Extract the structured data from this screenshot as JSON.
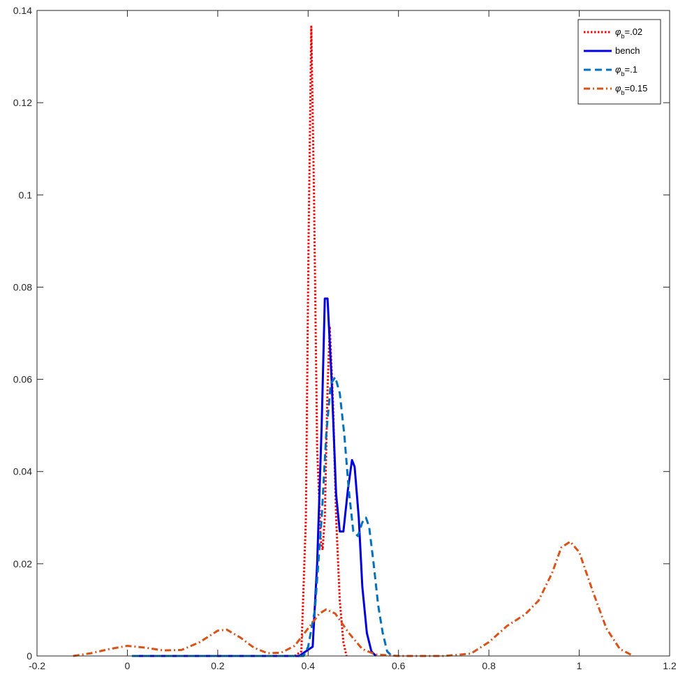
{
  "chart_data": {
    "type": "line",
    "title": "",
    "xlabel": "",
    "ylabel": "",
    "xlim": [
      -0.2,
      1.2
    ],
    "ylim": [
      0,
      0.14
    ],
    "x_ticks": [
      -0.2,
      0,
      0.2,
      0.4,
      0.6,
      0.8,
      1,
      1.2
    ],
    "x_tick_labels": [
      "-0.2",
      "0",
      "0.2",
      "0.4",
      "0.6",
      "0.8",
      "1",
      "1.2"
    ],
    "y_ticks": [
      0,
      0.02,
      0.04,
      0.06,
      0.08,
      0.1,
      0.12,
      0.14
    ],
    "y_tick_labels": [
      "0",
      "0.02",
      "0.04",
      "0.06",
      "0.08",
      "0.1",
      "0.12",
      "0.14"
    ],
    "grid": false,
    "legend_position": "top-right",
    "series": [
      {
        "legend_symbol": "φ",
        "legend_subscript": "b",
        "legend_suffix": "=.02",
        "color": "#ff0000",
        "style": "dotted",
        "points": [
          [
            0.37,
            0
          ],
          [
            0.385,
            0.001
          ],
          [
            0.395,
            0.03
          ],
          [
            0.401,
            0.09
          ],
          [
            0.407,
            0.1365
          ],
          [
            0.413,
            0.1
          ],
          [
            0.42,
            0.045
          ],
          [
            0.428,
            0.025
          ],
          [
            0.432,
            0.023
          ],
          [
            0.437,
            0.03
          ],
          [
            0.443,
            0.058
          ],
          [
            0.448,
            0.0715
          ],
          [
            0.455,
            0.055
          ],
          [
            0.462,
            0.03
          ],
          [
            0.47,
            0.012
          ],
          [
            0.478,
            0.003
          ],
          [
            0.485,
            0
          ]
        ]
      },
      {
        "legend_label": "bench",
        "color": "#0000dd",
        "style": "solid",
        "points": [
          [
            0.01,
            0
          ],
          [
            0.38,
            0
          ],
          [
            0.41,
            0.002
          ],
          [
            0.42,
            0.02
          ],
          [
            0.43,
            0.05
          ],
          [
            0.437,
            0.0775
          ],
          [
            0.443,
            0.0775
          ],
          [
            0.452,
            0.06
          ],
          [
            0.462,
            0.035
          ],
          [
            0.47,
            0.027
          ],
          [
            0.478,
            0.027
          ],
          [
            0.488,
            0.036
          ],
          [
            0.497,
            0.0425
          ],
          [
            0.503,
            0.041
          ],
          [
            0.512,
            0.03
          ],
          [
            0.52,
            0.015
          ],
          [
            0.53,
            0.005
          ],
          [
            0.54,
            0.001
          ],
          [
            0.55,
            0
          ]
        ]
      },
      {
        "legend_symbol": "φ",
        "legend_subscript": "b",
        "legend_suffix": "=.1",
        "color": "#0072bd",
        "style": "dashed",
        "points": [
          [
            0.01,
            0
          ],
          [
            0.39,
            0
          ],
          [
            0.4,
            0.002
          ],
          [
            0.415,
            0.01
          ],
          [
            0.43,
            0.03
          ],
          [
            0.44,
            0.048
          ],
          [
            0.45,
            0.059
          ],
          [
            0.46,
            0.0605
          ],
          [
            0.47,
            0.057
          ],
          [
            0.48,
            0.048
          ],
          [
            0.49,
            0.036
          ],
          [
            0.5,
            0.027
          ],
          [
            0.51,
            0.026
          ],
          [
            0.52,
            0.029
          ],
          [
            0.528,
            0.03
          ],
          [
            0.535,
            0.028
          ],
          [
            0.545,
            0.02
          ],
          [
            0.555,
            0.011
          ],
          [
            0.565,
            0.005
          ],
          [
            0.575,
            0.001
          ],
          [
            0.585,
            0
          ]
        ]
      },
      {
        "legend_symbol": "φ",
        "legend_subscript": "b",
        "legend_suffix": "=0.15",
        "color": "#d95319",
        "style": "dashdot",
        "points": [
          [
            -0.12,
            0
          ],
          [
            -0.08,
            0.0006
          ],
          [
            -0.04,
            0.0015
          ],
          [
            0,
            0.0022
          ],
          [
            0.04,
            0.0018
          ],
          [
            0.08,
            0.0012
          ],
          [
            0.12,
            0.0013
          ],
          [
            0.16,
            0.003
          ],
          [
            0.2,
            0.0055
          ],
          [
            0.22,
            0.0057
          ],
          [
            0.25,
            0.004
          ],
          [
            0.28,
            0.0018
          ],
          [
            0.31,
            0.0006
          ],
          [
            0.34,
            0.0007
          ],
          [
            0.37,
            0.0022
          ],
          [
            0.4,
            0.006
          ],
          [
            0.425,
            0.0092
          ],
          [
            0.44,
            0.0101
          ],
          [
            0.46,
            0.0092
          ],
          [
            0.49,
            0.005
          ],
          [
            0.52,
            0.0015
          ],
          [
            0.55,
            0.0003
          ],
          [
            0.6,
            0
          ],
          [
            0.7,
            0
          ],
          [
            0.76,
            0.0005
          ],
          [
            0.8,
            0.003
          ],
          [
            0.84,
            0.0065
          ],
          [
            0.88,
            0.009
          ],
          [
            0.91,
            0.012
          ],
          [
            0.94,
            0.018
          ],
          [
            0.96,
            0.0235
          ],
          [
            0.98,
            0.0248
          ],
          [
            1.0,
            0.0225
          ],
          [
            1.03,
            0.014
          ],
          [
            1.06,
            0.006
          ],
          [
            1.09,
            0.0015
          ],
          [
            1.12,
            0
          ]
        ]
      }
    ]
  }
}
